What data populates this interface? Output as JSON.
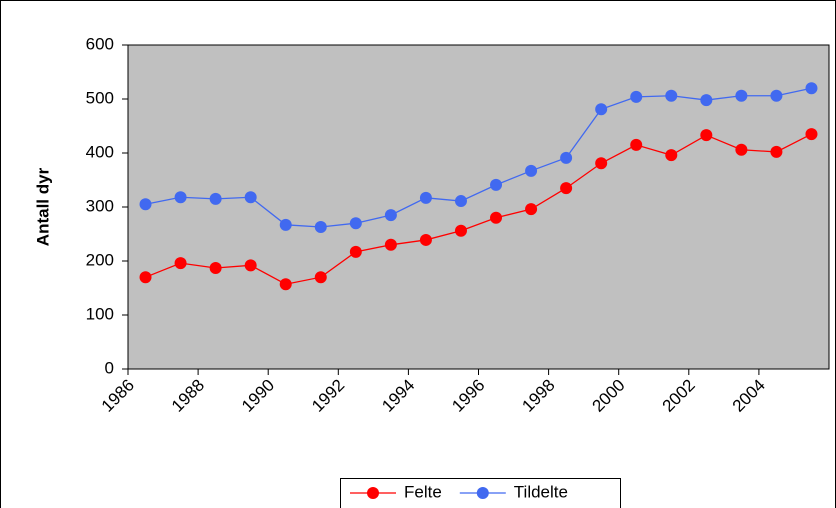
{
  "chart_data": {
    "type": "line",
    "y_label": "Antall dyr",
    "x": [
      1986.5,
      1987.5,
      1988.5,
      1989.5,
      1990.5,
      1991.5,
      1992.5,
      1993.5,
      1994.5,
      1995.5,
      1996.5,
      1997.5,
      1998.5,
      1999.5,
      2000.5,
      2001.5,
      2002.5,
      2003.5,
      2004.5,
      2005.5
    ],
    "series": [
      {
        "name": "Felte",
        "color": "#ff0000",
        "values": [
          170,
          196,
          187,
          192,
          157,
          170,
          217,
          230,
          239,
          256,
          280,
          296,
          335,
          381,
          415,
          396,
          433,
          406,
          402,
          435
        ]
      },
      {
        "name": "Tildelte",
        "color": "#4169f0",
        "values": [
          305,
          318,
          315,
          318,
          267,
          263,
          270,
          285,
          317,
          311,
          341,
          367,
          391,
          481,
          504,
          506,
          498,
          506,
          506,
          520
        ]
      }
    ],
    "xlim": [
      1986,
      2006
    ],
    "xticks": [
      1986,
      1988,
      1990,
      1992,
      1994,
      1996,
      1998,
      2000,
      2002,
      2004
    ],
    "ylim": [
      0,
      600
    ],
    "yticks": [
      0,
      100,
      200,
      300,
      400,
      500,
      600
    ],
    "grid": false,
    "legend": "bottom",
    "plot_background": "#c0c0c0"
  }
}
